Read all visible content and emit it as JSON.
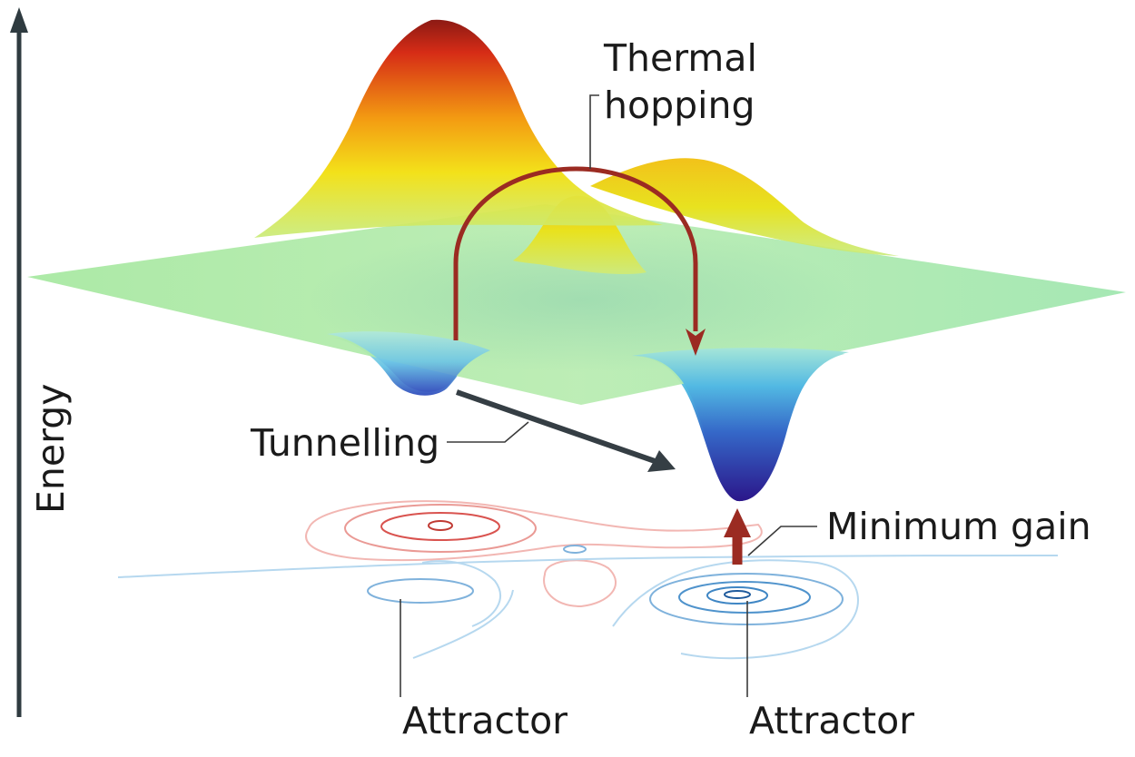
{
  "axis": {
    "label": "Energy"
  },
  "labels": {
    "thermal_hopping_line1": "Thermal",
    "thermal_hopping_line2": "hopping",
    "tunnelling": "Tunnelling",
    "minimum_gain": "Minimum gain",
    "attractor_left": "Attractor",
    "attractor_right": "Attractor"
  },
  "colors": {
    "axis": "#2f3b40",
    "thermal_arrow": "#9b2b22",
    "tunnelling_arrow": "#353e44",
    "minimum_gain_arrow": "#9b2b22",
    "contour_red": "#d9534f",
    "contour_blue": "#3f86c4",
    "plane_green": "#9ee6a0",
    "peak_red": "#c8211a",
    "peak_yellow": "#f0e31a",
    "well_blue": "#2b1f8f"
  },
  "icons": {
    "axis_head": "arrow-up-icon",
    "thermal_head": "arrow-down-icon",
    "tunnelling_head": "arrow-right-down-icon",
    "gain_head": "arrow-up-icon"
  }
}
